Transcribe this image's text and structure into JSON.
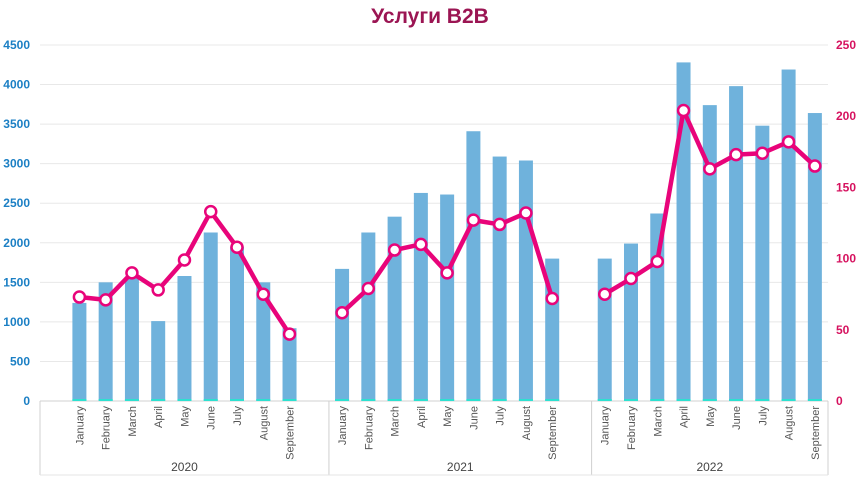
{
  "chart_data": {
    "type": "bar+line",
    "title": "Услуги B2B",
    "groups": [
      {
        "label": "2020",
        "months": [
          "January",
          "February",
          "March",
          "April",
          "May",
          "June",
          "July",
          "August",
          "September"
        ],
        "bars": [
          1240,
          1500,
          1560,
          1010,
          1580,
          2130,
          1950,
          1500,
          920
        ],
        "line": [
          73,
          71,
          90,
          78,
          99,
          133,
          108,
          75,
          47
        ]
      },
      {
        "label": "2021",
        "months": [
          "January",
          "February",
          "March",
          "April",
          "May",
          "June",
          "July",
          "August",
          "September"
        ],
        "bars": [
          1670,
          2130,
          2330,
          2630,
          2610,
          3410,
          3090,
          3040,
          1800
        ],
        "line": [
          62,
          79,
          106,
          110,
          90,
          127,
          124,
          132,
          72
        ]
      },
      {
        "label": "2022",
        "months": [
          "January",
          "February",
          "March",
          "April",
          "May",
          "June",
          "July",
          "August",
          "September"
        ],
        "bars": [
          1800,
          1990,
          2370,
          4280,
          3740,
          3980,
          3480,
          4190,
          3640
        ],
        "line": [
          75,
          86,
          98,
          204,
          163,
          173,
          174,
          182,
          165
        ]
      }
    ],
    "y_left": {
      "min": 0,
      "max": 4500,
      "ticks": [
        "0",
        "500",
        "1000",
        "1500",
        "2000",
        "2500",
        "3000",
        "3500",
        "4000",
        "4500"
      ]
    },
    "y_right": {
      "min": 0,
      "max": 250,
      "ticks": [
        "0",
        "50",
        "100",
        "150",
        "200",
        "250"
      ]
    },
    "grid": true,
    "colors": {
      "bars": "#6fb2dc",
      "line": "#e8047a",
      "base": "#2de0d0",
      "title": "#9b1553"
    }
  }
}
